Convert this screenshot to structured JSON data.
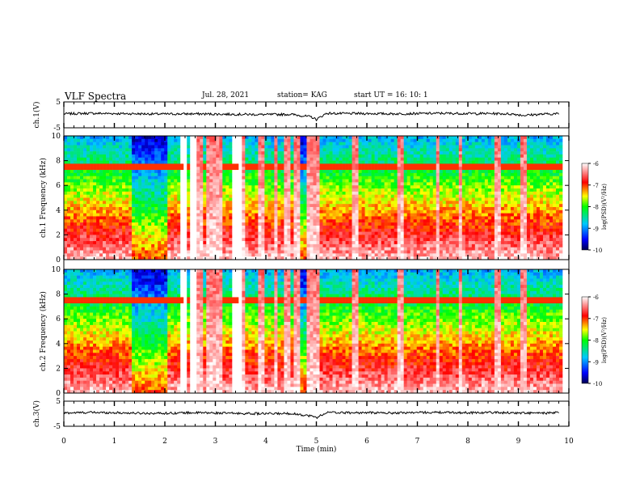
{
  "header": {
    "title": "VLF Spectra",
    "date": "Jul. 28, 2021",
    "station": "station= KAG",
    "start_ut": "start UT =  16: 10: 1"
  },
  "chart_data": [
    {
      "type": "line",
      "title": "",
      "ylabel": "ch.1(V)",
      "xlabel": "",
      "xlim": [
        0,
        10
      ],
      "ylim": [
        -5,
        5
      ],
      "yticks": [
        "5",
        "-5"
      ],
      "series": [
        {
          "x": [
            0,
            0.5,
            1,
            1.5,
            2,
            2.5,
            3,
            3.5,
            4,
            4.5,
            4.9,
            5.0,
            5.2,
            5.5,
            6,
            6.5,
            7,
            7.5,
            8,
            8.5,
            8.9,
            9.1,
            9.5,
            9.8
          ],
          "values": [
            0.4,
            0.6,
            0.5,
            0.4,
            0.3,
            0.4,
            0.3,
            0.2,
            0.1,
            0.2,
            -0.8,
            -1.8,
            0.6,
            0.5,
            0.5,
            0.4,
            0.5,
            0.6,
            0.5,
            0.5,
            0.3,
            -0.2,
            0.3,
            0.4
          ]
        }
      ]
    },
    {
      "type": "heatmap",
      "title": "",
      "ylabel": "ch.1 Frequency (kHz)",
      "xlabel": "",
      "xlim": [
        0,
        10
      ],
      "ylim": [
        0,
        10
      ],
      "yticks": [
        "0",
        "2",
        "4",
        "6",
        "8",
        "10"
      ],
      "colorbar": {
        "label": "log(PSD)(V²/Hz)",
        "ticks": [
          "-6",
          "-7",
          "-8",
          "-9",
          "-10"
        ],
        "range": [
          -10,
          -6
        ]
      },
      "bright_time_min": [
        2.4,
        2.55,
        2.7,
        2.85,
        2.95,
        3.1,
        3.55,
        3.9,
        4.2,
        4.45,
        4.6,
        4.85,
        5.0,
        5.75,
        6.65,
        7.4,
        7.85,
        8.6,
        9.1
      ],
      "dark_band_time_min": [
        [
          1.35,
          2.05
        ],
        [
          4.6,
          4.85
        ]
      ]
    },
    {
      "type": "heatmap",
      "title": "",
      "ylabel": "ch.2 Frequency (kHz)",
      "xlabel": "",
      "xlim": [
        0,
        10
      ],
      "ylim": [
        0,
        10
      ],
      "yticks": [
        "0",
        "2",
        "4",
        "6",
        "8",
        "10"
      ],
      "colorbar": {
        "label": "log(PSD)(V²/Hz)",
        "ticks": [
          "-6",
          "-7",
          "-8",
          "-9",
          "-10"
        ],
        "range": [
          -10,
          -6
        ]
      }
    },
    {
      "type": "line",
      "title": "",
      "ylabel": "ch.3(V)",
      "xlabel": "Time (min)",
      "xlim": [
        0,
        10
      ],
      "ylim": [
        -5,
        5
      ],
      "yticks": [
        "5",
        "-5"
      ],
      "xticks": [
        "0",
        "1",
        "2",
        "3",
        "4",
        "5",
        "6",
        "7",
        "8",
        "9",
        "10"
      ],
      "series": [
        {
          "x": [
            0,
            0.5,
            1,
            1.5,
            2,
            2.5,
            3,
            3.5,
            4,
            4.5,
            4.9,
            5.0,
            5.2,
            5.5,
            6,
            6.5,
            7,
            7.5,
            8,
            8.5,
            9,
            9.5,
            9.8
          ],
          "values": [
            0.3,
            0.5,
            0.4,
            0.2,
            0.2,
            0.4,
            0.3,
            0.1,
            0.0,
            0.1,
            -0.9,
            -1.6,
            0.5,
            0.4,
            0.4,
            0.3,
            0.5,
            0.5,
            0.4,
            0.5,
            0.3,
            0.2,
            0.4
          ]
        }
      ]
    }
  ]
}
